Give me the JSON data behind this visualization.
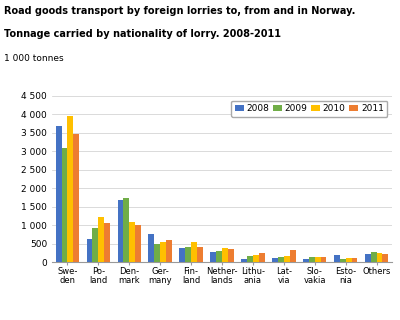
{
  "title_line1": "Road goods transport by foreign lorries to, from and in Norway.",
  "title_line2": "Tonnage carried by nationality of lorry. 2008-2011",
  "ylabel_above": "1 000 tonnes",
  "categories": [
    "Swe-\nden",
    "Po-\nland",
    "Den-\nmark",
    "Ger-\nmany",
    "Fin-\nland",
    "Nether-\nlands",
    "Lithu-\nania",
    "Lat-\nvia",
    "Slo-\nvakia",
    "Esto-\nnia",
    "Others"
  ],
  "years": [
    "2008",
    "2009",
    "2010",
    "2011"
  ],
  "colors": [
    "#4472c4",
    "#70ad47",
    "#ffc000",
    "#ed7d31"
  ],
  "values": {
    "2008": [
      3700,
      620,
      1680,
      760,
      390,
      270,
      100,
      130,
      90,
      190,
      220
    ],
    "2009": [
      3100,
      920,
      1730,
      500,
      420,
      310,
      170,
      155,
      140,
      100,
      290
    ],
    "2010": [
      3960,
      1220,
      1100,
      560,
      560,
      400,
      195,
      160,
      155,
      130,
      265
    ],
    "2011": [
      3470,
      1060,
      1000,
      610,
      420,
      370,
      265,
      335,
      155,
      115,
      225
    ]
  },
  "ylim": [
    0,
    4500
  ],
  "yticks": [
    0,
    500,
    1000,
    1500,
    2000,
    2500,
    3000,
    3500,
    4000,
    4500
  ],
  "background_color": "#ffffff",
  "grid_color": "#cccccc",
  "bar_width": 0.19
}
